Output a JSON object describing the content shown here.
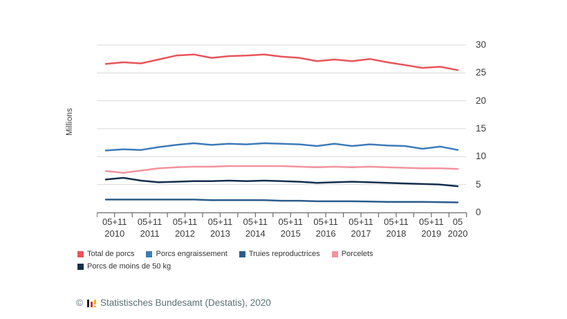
{
  "chart_data": {
    "type": "line",
    "title": "",
    "xlabel": "",
    "ylabel": "Millions",
    "ylim": [
      0,
      30
    ],
    "yticks": [
      0,
      5,
      10,
      15,
      20,
      25,
      30
    ],
    "grid": true,
    "legend_position": "bottom",
    "x_group_labels": [
      {
        "period": "05+11",
        "year": "2010"
      },
      {
        "period": "05+11",
        "year": "2011"
      },
      {
        "period": "05+11",
        "year": "2012"
      },
      {
        "period": "05+11",
        "year": "2013"
      },
      {
        "period": "05+11",
        "year": "2014"
      },
      {
        "period": "05+11",
        "year": "2015"
      },
      {
        "period": "05+11",
        "year": "2016"
      },
      {
        "period": "05+11",
        "year": "2017"
      },
      {
        "period": "05+11",
        "year": "2018"
      },
      {
        "period": "05+11",
        "year": "2019"
      },
      {
        "period": "05",
        "year": "2020"
      }
    ],
    "categories": [
      "05 2010",
      "11 2010",
      "05 2011",
      "11 2011",
      "05 2012",
      "11 2012",
      "05 2013",
      "11 2013",
      "05 2014",
      "11 2014",
      "05 2015",
      "11 2015",
      "05 2016",
      "11 2016",
      "05 2017",
      "11 2017",
      "05 2018",
      "11 2018",
      "05 2019",
      "11 2019",
      "05 2020"
    ],
    "series": [
      {
        "name": "Total de porcs",
        "color": "#e8545a",
        "values": [
          26.6,
          26.9,
          26.7,
          27.4,
          28.1,
          28.3,
          27.7,
          28.0,
          28.1,
          28.3,
          27.9,
          27.7,
          27.1,
          27.4,
          27.1,
          27.5,
          26.9,
          26.4,
          25.9,
          26.1,
          25.5
        ]
      },
      {
        "name": "Porcs engraissement",
        "color": "#3e7bb8",
        "values": [
          11.1,
          11.3,
          11.2,
          11.7,
          12.1,
          12.4,
          12.1,
          12.3,
          12.2,
          12.4,
          12.3,
          12.2,
          11.9,
          12.3,
          11.9,
          12.2,
          12.0,
          11.9,
          11.4,
          11.8,
          11.2
        ]
      },
      {
        "name": "Truies reproductrices",
        "color": "#2a5c8a",
        "values": [
          2.3,
          2.3,
          2.3,
          2.3,
          2.3,
          2.3,
          2.2,
          2.2,
          2.2,
          2.2,
          2.1,
          2.1,
          2.0,
          2.0,
          2.0,
          1.95,
          1.9,
          1.9,
          1.9,
          1.85,
          1.8
        ]
      },
      {
        "name": "Porcelets",
        "color": "#f2939d",
        "values": [
          7.4,
          7.1,
          7.5,
          7.9,
          8.1,
          8.2,
          8.2,
          8.3,
          8.3,
          8.3,
          8.3,
          8.2,
          8.1,
          8.2,
          8.1,
          8.2,
          8.1,
          8.0,
          7.9,
          7.9,
          7.8
        ]
      },
      {
        "name": "Porcs de moins de 50 kg",
        "color": "#132e4c",
        "values": [
          5.9,
          6.2,
          5.7,
          5.4,
          5.5,
          5.6,
          5.6,
          5.7,
          5.6,
          5.7,
          5.6,
          5.5,
          5.3,
          5.4,
          5.5,
          5.4,
          5.3,
          5.2,
          5.1,
          5.0,
          4.7
        ]
      }
    ]
  },
  "axis": {
    "label_color": "#3a3a3a",
    "grid_color": "#d9d9d9",
    "axis_color": "#6b6b6b"
  },
  "footer": {
    "copyright": "©",
    "text": "Statistisches Bundesamt (Destatis), 2020",
    "logo_colors": [
      "#1a1a1a",
      "#d42f2f",
      "#f0b400"
    ]
  }
}
